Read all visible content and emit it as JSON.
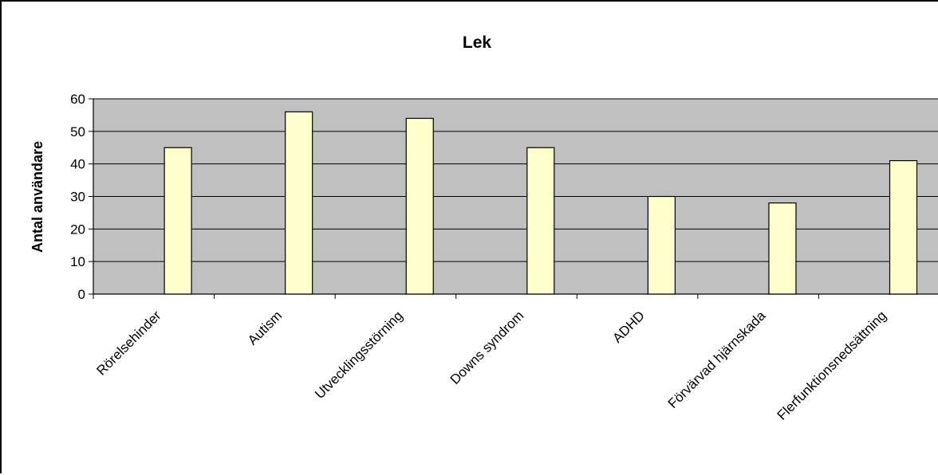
{
  "chart_data": {
    "type": "bar",
    "title": "Lek",
    "xlabel": "",
    "ylabel": "Antal användare",
    "categories": [
      "Rörelsehinder",
      "Autism",
      "Utvecklingsstörning",
      "Downs syndrom",
      "ADHD",
      "Förvärvad hjärnskada",
      "Flerfunktionsnedsättning"
    ],
    "values": [
      45,
      56,
      54,
      45,
      30,
      28,
      41
    ],
    "ylim": [
      0,
      60
    ],
    "yticks": [
      0,
      10,
      20,
      30,
      40,
      50,
      60
    ],
    "grid": true,
    "legend": "none",
    "colors": {
      "plot_background": "#c0c0c0",
      "bar_fill": "#ffffcc",
      "bar_stroke": "#000000",
      "gridline": "#000000"
    }
  }
}
